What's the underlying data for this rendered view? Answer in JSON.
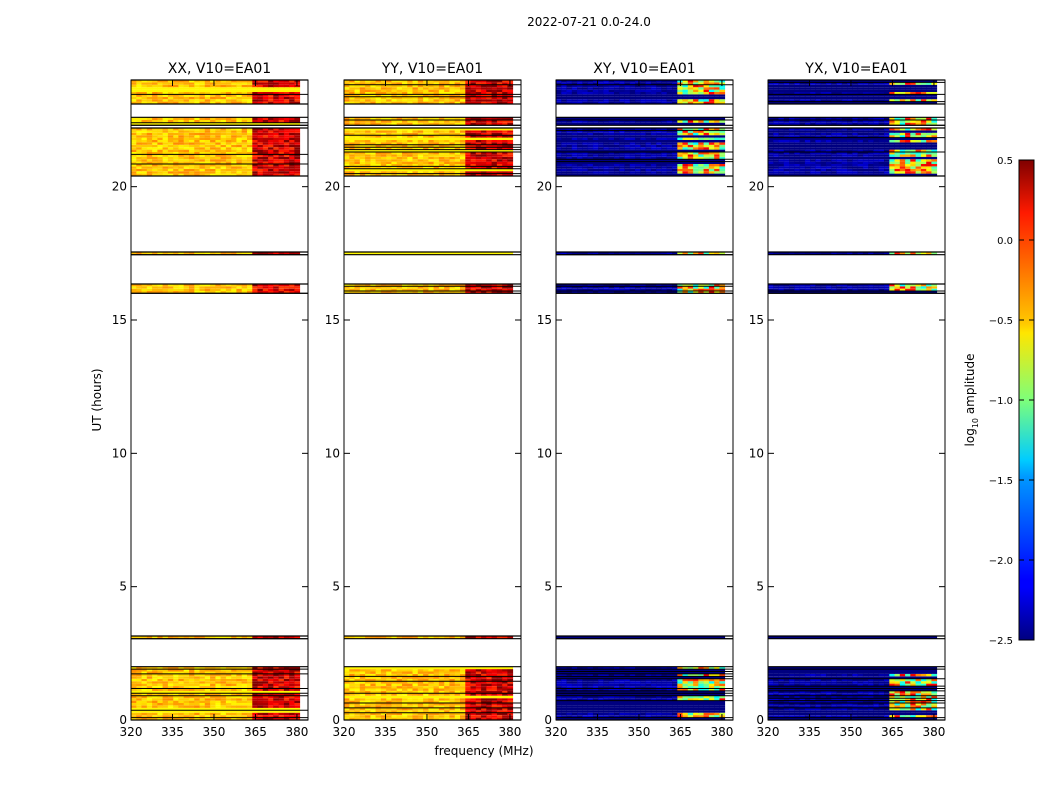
{
  "suptitle": "2022-07-21 0.0-24.0",
  "xlabel": "frequency (MHz)",
  "ylabel": "UT (hours)",
  "chart_data": {
    "type": "heatmap",
    "x_ticks": [
      320,
      335,
      350,
      365,
      380
    ],
    "y_ticks": [
      0,
      5,
      10,
      15,
      20
    ],
    "xlim": [
      320,
      384
    ],
    "ylim": [
      0,
      24
    ],
    "panels": [
      {
        "title": "XX, V10=EA01",
        "pol": "XX",
        "base_level": -0.45,
        "hot_level": 0.25
      },
      {
        "title": "YY, V10=EA01",
        "pol": "YY",
        "base_level": -0.45,
        "hot_level": 0.25
      },
      {
        "title": "XY, V10=EA01",
        "pol": "XY",
        "base_level": -2.4,
        "hot_level": -0.6
      },
      {
        "title": "YX, V10=EA01",
        "pol": "YX",
        "base_level": -2.4,
        "hot_level": -0.6
      }
    ],
    "data_hour_ranges": [
      [
        0.0,
        2.0
      ],
      [
        3.05,
        3.15
      ],
      [
        16.0,
        16.35
      ],
      [
        17.45,
        17.55
      ],
      [
        20.4,
        22.2
      ],
      [
        22.3,
        22.6
      ],
      [
        23.1,
        24.0
      ]
    ],
    "hot_freq_range": [
      363,
      380
    ],
    "colorbar": {
      "label": "log",
      "label_sub": "10",
      "label_rest": " amplitude",
      "min": -2.5,
      "max": 0.5,
      "ticks": [
        "0.5",
        "0.0",
        "−0.5",
        "−1.0",
        "−1.5",
        "−2.0",
        "−2.5"
      ],
      "tick_values": [
        0.5,
        0.0,
        -0.5,
        -1.0,
        -1.5,
        -2.0,
        -2.5
      ]
    }
  }
}
